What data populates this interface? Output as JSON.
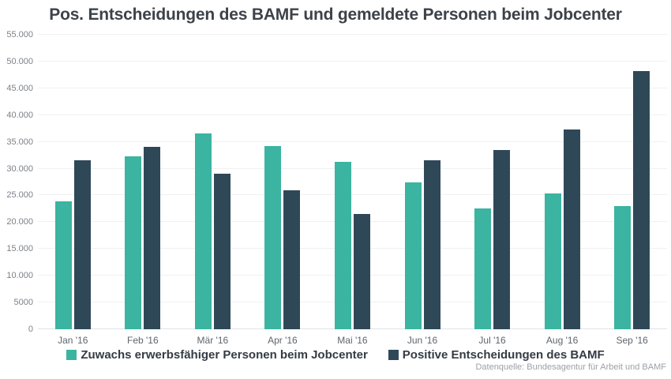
{
  "title": "Pos. Entscheidungen des BAMF und gemeldete Personen beim Jobcenter",
  "source": "Datenquelle: Bundesagentur für Arbeit und BAMF",
  "colors": {
    "jobcenter": "#3bb4a1",
    "bamf": "#2f4858",
    "gridline": "#eef1f3",
    "title_text": "#3c4248",
    "axis_text": "#7c8187"
  },
  "legend": [
    {
      "label": "Zuwachs erwerbsfähiger Personen beim Jobcenter",
      "color": "#3bb4a1"
    },
    {
      "label": "Positive Entscheidungen des BAMF",
      "color": "#2f4858"
    }
  ],
  "chart_data": {
    "type": "bar",
    "title": "Pos. Entscheidungen des BAMF und gemeldete Personen beim Jobcenter",
    "xlabel": "",
    "ylabel": "",
    "ylim": [
      0,
      55000
    ],
    "grid": true,
    "legend_position": "bottom",
    "categories": [
      "Jan '16",
      "Feb '16",
      "Mär '16",
      "Apr '16",
      "Mai '16",
      "Jun '16",
      "Jul '16",
      "Aug '16",
      "Sep '16"
    ],
    "series": [
      {
        "name": "Zuwachs erwerbsfähiger Personen beim Jobcenter",
        "color": "#3bb4a1",
        "values": [
          23900,
          32300,
          36500,
          34200,
          31200,
          27400,
          22600,
          25300,
          23000
        ]
      },
      {
        "name": "Positive Entscheidungen des BAMF",
        "color": "#2f4858",
        "values": [
          31600,
          34000,
          29000,
          25900,
          21600,
          31600,
          33500,
          37300,
          48200
        ]
      }
    ],
    "yticks": [
      {
        "value": 0,
        "label": "0"
      },
      {
        "value": 5000,
        "label": "5000"
      },
      {
        "value": 10000,
        "label": "10.000"
      },
      {
        "value": 15000,
        "label": "15.000"
      },
      {
        "value": 20000,
        "label": "20.000"
      },
      {
        "value": 25000,
        "label": "25.000"
      },
      {
        "value": 30000,
        "label": "30.000"
      },
      {
        "value": 35000,
        "label": "35.000"
      },
      {
        "value": 40000,
        "label": "40.000"
      },
      {
        "value": 45000,
        "label": "45.000"
      },
      {
        "value": 50000,
        "label": "50.000"
      },
      {
        "value": 55000,
        "label": "55.000"
      }
    ],
    "source": "Datenquelle: Bundesagentur für Arbeit und BAMF"
  }
}
